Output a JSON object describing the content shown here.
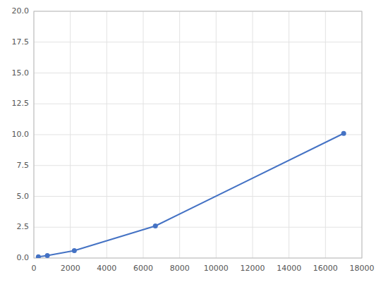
{
  "chart_data": {
    "type": "line",
    "x": [
      246,
      740,
      2220,
      6667,
      17000
    ],
    "values": [
      0.1,
      0.2,
      0.6,
      2.6,
      10.1
    ],
    "color": "#4472c4",
    "marker": "circle",
    "xlim": [
      0,
      18000
    ],
    "ylim": [
      0,
      20.0
    ],
    "xticks": [
      0,
      2000,
      4000,
      6000,
      8000,
      10000,
      12000,
      14000,
      16000,
      18000
    ],
    "yticks": [
      {
        "value": 0.0,
        "label": "0.0"
      },
      2.5,
      {
        "value": 5.0,
        "label": "5.0"
      },
      7.5,
      {
        "value": 10.0,
        "label": "10.0"
      },
      12.5,
      {
        "value": 15.0,
        "label": "15.0"
      },
      17.5,
      {
        "value": 20.0,
        "label": "20.0"
      }
    ],
    "grid": true
  }
}
